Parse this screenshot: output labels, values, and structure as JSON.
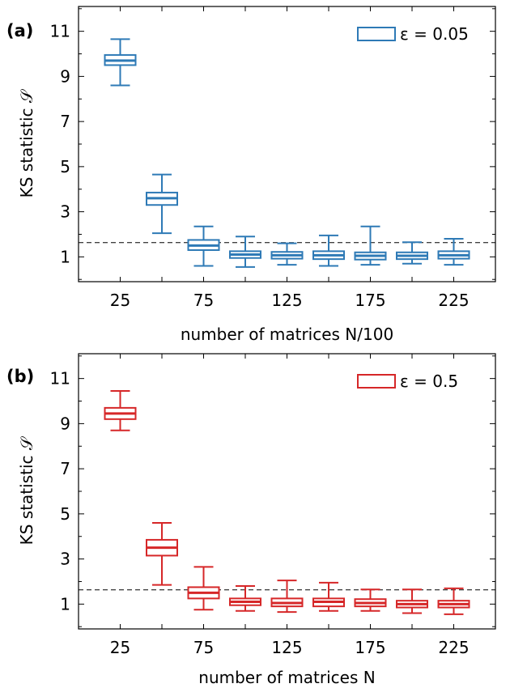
{
  "chart_data": [
    {
      "type": "box",
      "panel_label": "(a)",
      "ylabel": "KS statistic 𝒮",
      "xlabel": "number of matrices N/100",
      "xticks": [
        "25",
        "75",
        "125",
        "175",
        "225"
      ],
      "yticks": [
        "1",
        "3",
        "5",
        "7",
        "9",
        "11"
      ],
      "ylim": [
        -0.1,
        12.1
      ],
      "xlim": [
        0,
        250
      ],
      "reference_line": 1.63,
      "color": "#2e7ab6",
      "legend": "ε = 0.05",
      "legend_position": "top-right",
      "boxes": [
        {
          "x": 25,
          "whisker_low": 8.6,
          "q1": 9.5,
          "median": 9.7,
          "q3": 9.95,
          "whisker_high": 10.65
        },
        {
          "x": 50,
          "whisker_low": 2.05,
          "q1": 3.3,
          "median": 3.6,
          "q3": 3.85,
          "whisker_high": 4.65
        },
        {
          "x": 75,
          "whisker_low": 0.6,
          "q1": 1.3,
          "median": 1.5,
          "q3": 1.75,
          "whisker_high": 2.35
        },
        {
          "x": 100,
          "whisker_low": 0.55,
          "q1": 0.95,
          "median": 1.1,
          "q3": 1.25,
          "whisker_high": 1.9
        },
        {
          "x": 125,
          "whisker_low": 0.65,
          "q1": 0.92,
          "median": 1.07,
          "q3": 1.22,
          "whisker_high": 1.6
        },
        {
          "x": 150,
          "whisker_low": 0.6,
          "q1": 0.9,
          "median": 1.07,
          "q3": 1.25,
          "whisker_high": 1.95
        },
        {
          "x": 175,
          "whisker_low": 0.65,
          "q1": 0.88,
          "median": 1.05,
          "q3": 1.2,
          "whisker_high": 2.35
        },
        {
          "x": 200,
          "whisker_low": 0.7,
          "q1": 0.9,
          "median": 1.05,
          "q3": 1.2,
          "whisker_high": 1.65
        },
        {
          "x": 225,
          "whisker_low": 0.65,
          "q1": 0.92,
          "median": 1.07,
          "q3": 1.25,
          "whisker_high": 1.8
        }
      ]
    },
    {
      "type": "box",
      "panel_label": "(b)",
      "ylabel": "KS statistic 𝒮",
      "xlabel": "number of matrices N",
      "xticks": [
        "25",
        "75",
        "125",
        "175",
        "225"
      ],
      "yticks": [
        "1",
        "3",
        "5",
        "7",
        "9",
        "11"
      ],
      "ylim": [
        -0.1,
        12.1
      ],
      "xlim": [
        0,
        250
      ],
      "reference_line": 1.63,
      "color": "#d62728",
      "legend": "ε = 0.5",
      "legend_position": "top-right",
      "boxes": [
        {
          "x": 25,
          "whisker_low": 8.7,
          "q1": 9.2,
          "median": 9.45,
          "q3": 9.7,
          "whisker_high": 10.45
        },
        {
          "x": 50,
          "whisker_low": 1.85,
          "q1": 3.15,
          "median": 3.5,
          "q3": 3.85,
          "whisker_high": 4.6
        },
        {
          "x": 75,
          "whisker_low": 0.75,
          "q1": 1.25,
          "median": 1.5,
          "q3": 1.75,
          "whisker_high": 2.65
        },
        {
          "x": 100,
          "whisker_low": 0.7,
          "q1": 0.95,
          "median": 1.1,
          "q3": 1.25,
          "whisker_high": 1.8
        },
        {
          "x": 125,
          "whisker_low": 0.65,
          "q1": 0.9,
          "median": 1.05,
          "q3": 1.25,
          "whisker_high": 2.05
        },
        {
          "x": 150,
          "whisker_low": 0.7,
          "q1": 0.9,
          "median": 1.1,
          "q3": 1.25,
          "whisker_high": 1.95
        },
        {
          "x": 175,
          "whisker_low": 0.7,
          "q1": 0.9,
          "median": 1.05,
          "q3": 1.22,
          "whisker_high": 1.65
        },
        {
          "x": 200,
          "whisker_low": 0.6,
          "q1": 0.85,
          "median": 1.0,
          "q3": 1.15,
          "whisker_high": 1.65
        },
        {
          "x": 225,
          "whisker_low": 0.55,
          "q1": 0.85,
          "median": 1.0,
          "q3": 1.15,
          "whisker_high": 1.7
        }
      ]
    }
  ]
}
